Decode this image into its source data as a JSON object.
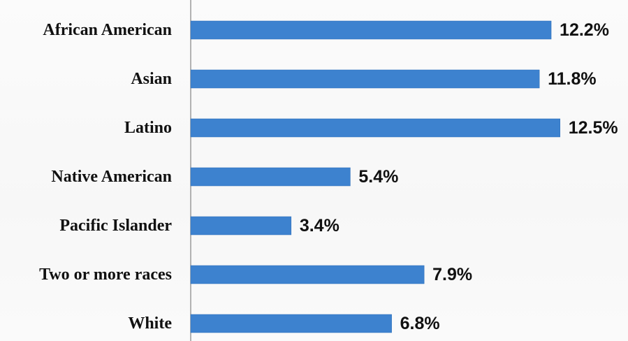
{
  "colors": {
    "bar": "#3d82cf",
    "bar_edge": "#2f6fb8",
    "axis": "#9a9a9a",
    "text": "#111111"
  },
  "chart_data": {
    "type": "bar",
    "orientation": "horizontal",
    "title": "",
    "xlabel": "",
    "ylabel": "",
    "value_suffix": "%",
    "xlim": [
      0,
      13
    ],
    "grid": false,
    "legend": "none",
    "categories": [
      "African American",
      "Asian",
      "Latino",
      "Native American",
      "Pacific Islander",
      "Two or more races",
      "White"
    ],
    "values": [
      12.2,
      11.8,
      12.5,
      5.4,
      3.4,
      7.9,
      6.8
    ],
    "value_labels": [
      "12.2%",
      "11.8%",
      "12.5%",
      "5.4%",
      "3.4%",
      "7.9%",
      "6.8%"
    ]
  }
}
